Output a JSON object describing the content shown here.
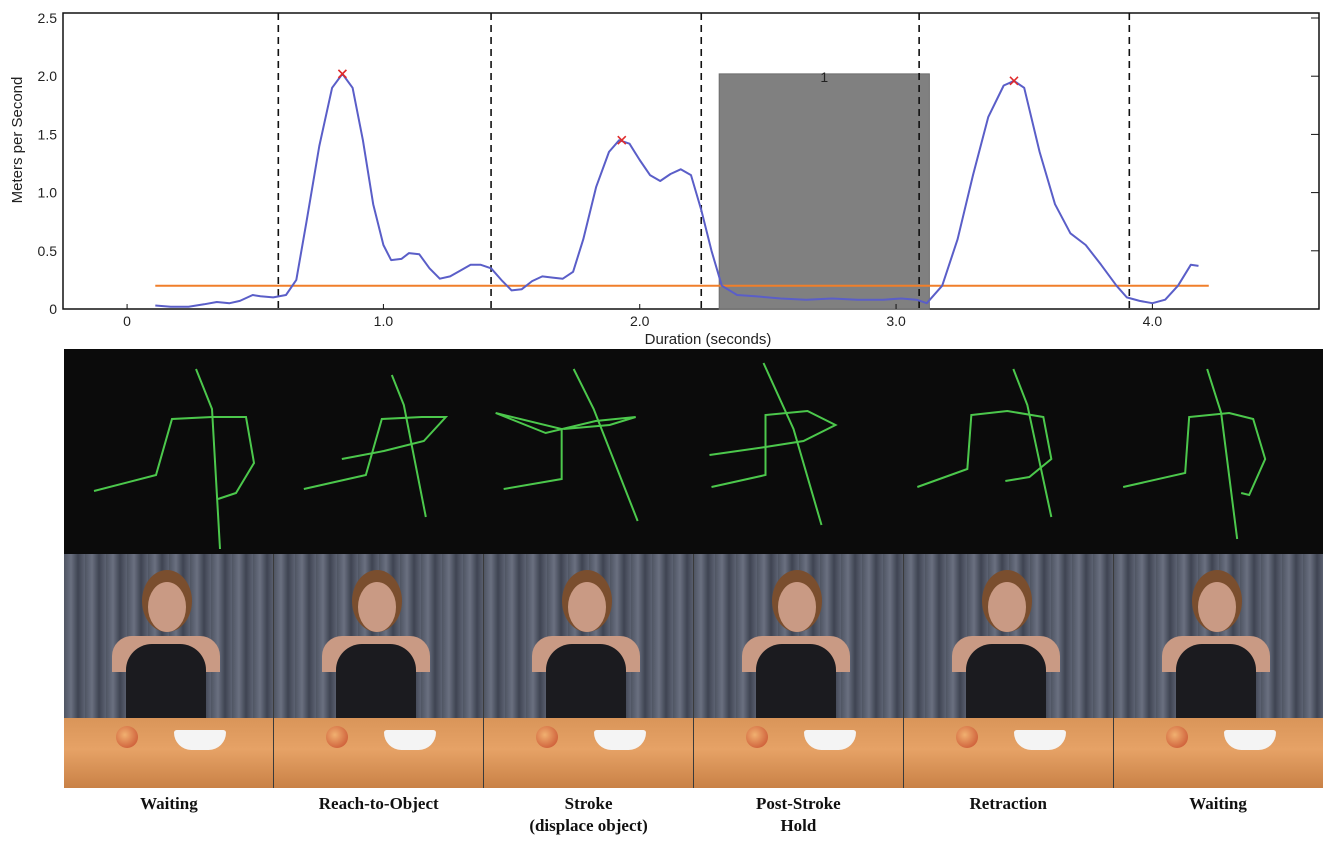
{
  "chart_data": {
    "type": "line",
    "title": "",
    "xlabel": "Duration (seconds)",
    "ylabel": "Meters per Second",
    "xlim": [
      -0.25,
      4.65
    ],
    "ylim": [
      0,
      2.5
    ],
    "xticks": [
      {
        "value": 0,
        "label": "0"
      },
      {
        "value": 1.0,
        "label": "1.0"
      },
      {
        "value": 2.0,
        "label": "2.0"
      },
      {
        "value": 3.0,
        "label": "3.0"
      },
      {
        "value": 4.0,
        "label": "4.0"
      }
    ],
    "yticks": [
      {
        "value": 0,
        "label": "0"
      },
      {
        "value": 0.5,
        "label": "0.5"
      },
      {
        "value": 1.0,
        "label": "1.0"
      },
      {
        "value": 1.5,
        "label": "1.5"
      },
      {
        "value": 2.0,
        "label": "2.0"
      },
      {
        "value": 2.5,
        "label": "2.5"
      }
    ],
    "series": [
      {
        "color": "#5a5ec8",
        "x": [
          0.11,
          0.17,
          0.24,
          0.3,
          0.35,
          0.4,
          0.44,
          0.49,
          0.52,
          0.57,
          0.62,
          0.66,
          0.7,
          0.75,
          0.8,
          0.84,
          0.88,
          0.92,
          0.96,
          1.0,
          1.03,
          1.07,
          1.1,
          1.14,
          1.18,
          1.22,
          1.26,
          1.3,
          1.34,
          1.38,
          1.42,
          1.46,
          1.5,
          1.54,
          1.58,
          1.62,
          1.66,
          1.7,
          1.74,
          1.78,
          1.83,
          1.88,
          1.92,
          1.96,
          2.0,
          2.04,
          2.08,
          2.12,
          2.16,
          2.2,
          2.24,
          2.28,
          2.32,
          2.38,
          2.45,
          2.55,
          2.65,
          2.75,
          2.85,
          2.95,
          3.02,
          3.08,
          3.12,
          3.18,
          3.24,
          3.3,
          3.36,
          3.42,
          3.46,
          3.5,
          3.56,
          3.62,
          3.68,
          3.74,
          3.8,
          3.86,
          3.9,
          3.95,
          4.0,
          4.05,
          4.1,
          4.15,
          4.18
        ],
        "y": [
          0.03,
          0.02,
          0.02,
          0.04,
          0.06,
          0.05,
          0.07,
          0.12,
          0.11,
          0.1,
          0.12,
          0.25,
          0.75,
          1.4,
          1.9,
          2.02,
          1.9,
          1.45,
          0.9,
          0.55,
          0.42,
          0.43,
          0.48,
          0.47,
          0.35,
          0.26,
          0.28,
          0.33,
          0.38,
          0.38,
          0.35,
          0.25,
          0.16,
          0.17,
          0.24,
          0.28,
          0.27,
          0.26,
          0.32,
          0.6,
          1.05,
          1.35,
          1.45,
          1.42,
          1.28,
          1.15,
          1.1,
          1.16,
          1.2,
          1.15,
          0.85,
          0.5,
          0.2,
          0.12,
          0.11,
          0.09,
          0.08,
          0.09,
          0.08,
          0.08,
          0.09,
          0.08,
          0.05,
          0.2,
          0.6,
          1.15,
          1.65,
          1.92,
          1.96,
          1.9,
          1.35,
          0.9,
          0.65,
          0.55,
          0.38,
          0.2,
          0.1,
          0.07,
          0.05,
          0.08,
          0.2,
          0.38,
          0.37
        ]
      }
    ],
    "threshold": {
      "y": 0.2,
      "x_start": 0.11,
      "x_end": 4.22,
      "color": "#f07f2a"
    },
    "peak_markers": {
      "color": "#e02b2b",
      "points": [
        {
          "x": 0.84,
          "y": 2.02
        },
        {
          "x": 1.93,
          "y": 1.45
        },
        {
          "x": 3.46,
          "y": 1.96
        }
      ]
    },
    "phase_boundaries": [
      0.59,
      1.42,
      2.24,
      3.09,
      3.91
    ],
    "hold_region": {
      "x_start": 2.31,
      "x_end": 3.13,
      "y_top": 2.02,
      "label": "1",
      "color": "#808080"
    },
    "grid": false,
    "legend": "none"
  },
  "phases": [
    {
      "label": "Waiting"
    },
    {
      "label": "Reach-to-Object"
    },
    {
      "label": "Stroke\n(displace object)"
    },
    {
      "label": "Post-Stroke\nHold"
    },
    {
      "label": "Retraction"
    },
    {
      "label": "Waiting"
    }
  ],
  "colors": {
    "skeleton": "#4cc84c",
    "skeleton_background": "#0b0b0b"
  }
}
